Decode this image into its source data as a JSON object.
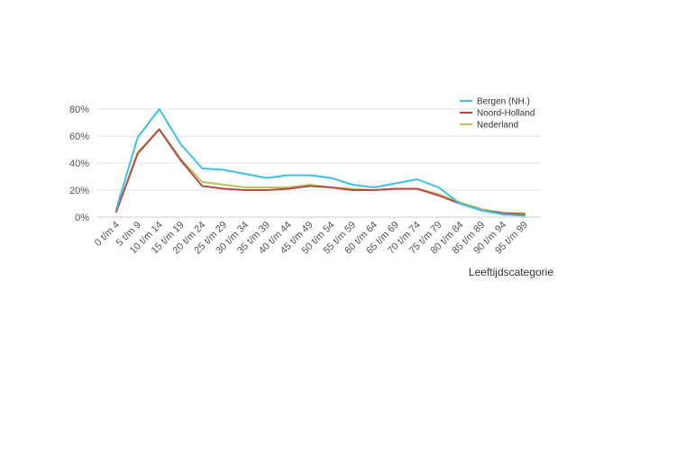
{
  "chart_data": {
    "type": "line",
    "title": "",
    "xlabel": "Leeftijdscategorie",
    "ylabel": "",
    "categories": [
      "0 t/m 4",
      "5 t/m 9",
      "10 t/m 14",
      "15 t/m 19",
      "20 t/m 24",
      "25 t/m 29",
      "30 t/m 34",
      "35 t/m 39",
      "40 t/m 44",
      "45 t/m 49",
      "50 t/m 54",
      "55 t/m 59",
      "60 t/m 64",
      "65 t/m 69",
      "70 t/m 74",
      "75 t/m 79",
      "80 t/m 84",
      "85 t/m 89",
      "90 t/m 94",
      "95 t/m 99"
    ],
    "y_ticks": [
      {
        "value": 0,
        "label": "0%"
      },
      {
        "value": 20,
        "label": "20%"
      },
      {
        "value": 40,
        "label": "40%"
      },
      {
        "value": 60,
        "label": "60%"
      },
      {
        "value": 80,
        "label": "80%"
      }
    ],
    "ylim": [
      0,
      80
    ],
    "grid": true,
    "legend_position": "top-right",
    "series": [
      {
        "name": "Bergen (NH.)",
        "color": "#3ec0e8",
        "values": [
          6,
          59,
          80,
          54,
          36,
          35,
          32,
          29,
          31,
          31,
          29,
          24,
          22,
          25,
          28,
          22,
          10,
          5,
          2,
          1
        ]
      },
      {
        "name": "Noord-Holland",
        "color": "#b34a4a",
        "values": [
          4,
          47,
          65,
          42,
          23,
          21,
          20,
          20,
          21,
          23,
          22,
          20,
          20,
          21,
          21,
          16,
          10,
          5,
          3,
          2
        ]
      },
      {
        "name": "Nederland",
        "color": "#bcc45c",
        "values": [
          4,
          48,
          65,
          43,
          26,
          24,
          22,
          22,
          22,
          24,
          22,
          21,
          20,
          21,
          21,
          17,
          11,
          6,
          3,
          3
        ]
      }
    ]
  }
}
